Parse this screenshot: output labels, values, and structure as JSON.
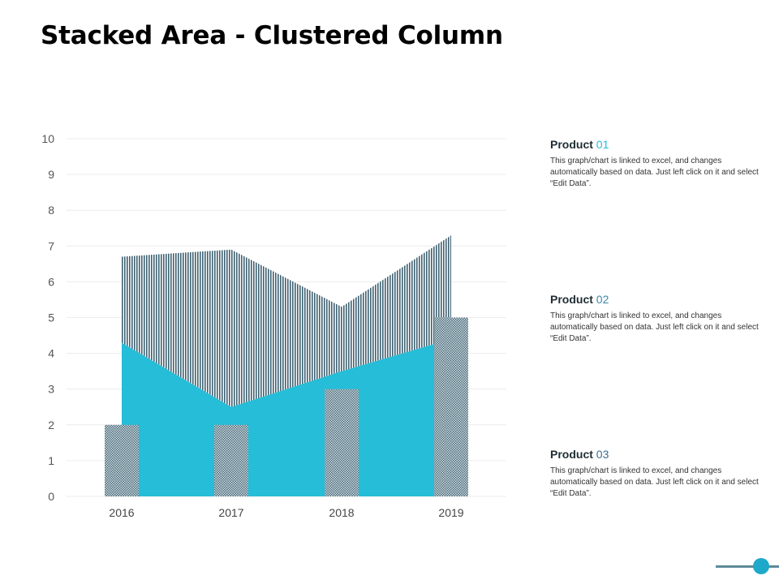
{
  "title": "Stacked Area - Clustered Column",
  "colors": {
    "area_base": "#25bdd8",
    "area_top_pattern": "#3f6272",
    "column_pattern": "#4d6d7b",
    "accent_01": "#25bdd8",
    "accent_02": "#3f87a8",
    "accent_03": "#3a6f8f"
  },
  "products": [
    {
      "label": "Product",
      "num": "01",
      "desc": "This graph/chart is linked to excel, and changes automatically based on data. Just left click on it and select “Edit Data”."
    },
    {
      "label": "Product",
      "num": "02",
      "desc": "This graph/chart is linked to excel, and changes automatically based on data. Just left click on it and select “Edit Data”."
    },
    {
      "label": "Product",
      "num": "03",
      "desc": "This graph/chart is linked to excel, and changes automatically based on data. Just left click on it and select “Edit Data”."
    }
  ],
  "chart_data": {
    "type": "area",
    "categories": [
      "2016",
      "2017",
      "2018",
      "2019"
    ],
    "ylim": [
      0,
      10
    ],
    "yticks": [
      "0",
      "1",
      "2",
      "3",
      "4",
      "5",
      "6",
      "7",
      "8",
      "9",
      "10"
    ],
    "grid": true,
    "series": [
      {
        "kind": "area",
        "values": [
          4.3,
          2.5,
          3.5,
          4.4
        ]
      },
      {
        "kind": "area",
        "values": [
          2.4,
          4.4,
          1.8,
          2.9
        ]
      },
      {
        "kind": "column",
        "values": [
          2,
          2,
          3,
          5
        ]
      }
    ]
  }
}
